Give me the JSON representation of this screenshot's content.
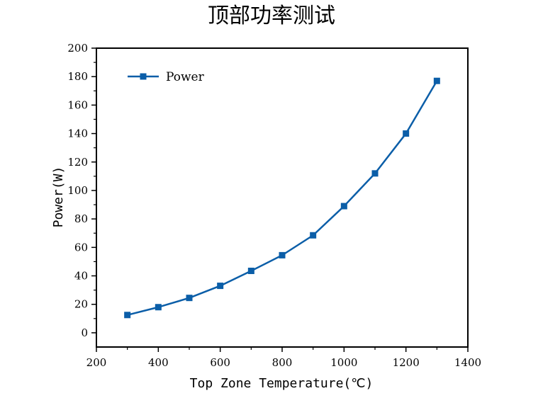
{
  "chart_data": {
    "type": "line",
    "title": "顶部功率测试",
    "xlabel": "Top Zone Temperature(℃)",
    "ylabel": "Power(W)",
    "xlim": [
      200,
      1400
    ],
    "ylim": [
      -10,
      200
    ],
    "xticks": [
      200,
      400,
      600,
      800,
      1000,
      1200,
      1400
    ],
    "yticks": [
      0,
      20,
      40,
      60,
      80,
      100,
      120,
      140,
      160,
      180,
      200
    ],
    "legend": {
      "position": "top-left",
      "label": "Power"
    },
    "series": [
      {
        "name": "Power",
        "color": "#0b5ea8",
        "marker": "square",
        "x": [
          300,
          400,
          500,
          600,
          700,
          800,
          900,
          1000,
          1100,
          1200,
          1300
        ],
        "y": [
          12.5,
          18,
          24.5,
          33,
          43.5,
          54.5,
          68.5,
          89,
          112,
          140,
          177
        ]
      }
    ]
  }
}
